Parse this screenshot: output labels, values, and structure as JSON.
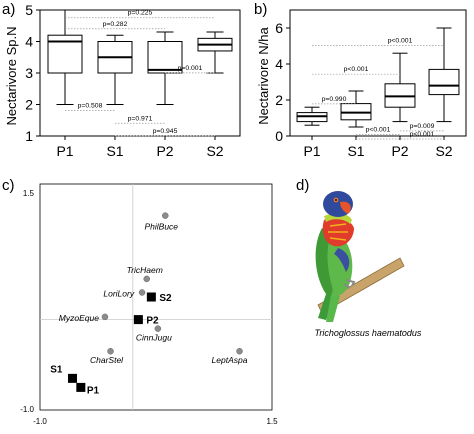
{
  "chart_data": [
    {
      "type": "box",
      "panel_label": "a)",
      "ylabel": "Nectarivore Sp.N",
      "ylim": [
        1,
        5
      ],
      "yticks": [
        1,
        2,
        3,
        4,
        5
      ],
      "categories": [
        "P1",
        "S1",
        "P2",
        "S2"
      ],
      "boxes": [
        {
          "whisker_low": 2.0,
          "q1": 3.0,
          "median": 4.0,
          "q3": 4.2,
          "whisker_high": 5.0
        },
        {
          "whisker_low": 2.0,
          "q1": 3.0,
          "median": 3.5,
          "q3": 4.0,
          "whisker_high": 4.2
        },
        {
          "whisker_low": 2.0,
          "q1": 3.0,
          "median": 3.1,
          "q3": 4.0,
          "whisker_high": 4.3
        },
        {
          "whisker_low": 3.0,
          "q1": 3.7,
          "median": 3.9,
          "q3": 4.1,
          "whisker_high": 4.3
        }
      ],
      "annotations": [
        {
          "text": "p=0.225",
          "x": 2.5,
          "y": 4.85,
          "from": 1,
          "to": 4
        },
        {
          "text": "p=0.282",
          "x": 2.0,
          "y": 4.5,
          "from": 1,
          "to": 3
        },
        {
          "text": "p=0.001",
          "x": 3.5,
          "y": 3.1,
          "from": 3,
          "to": 4
        },
        {
          "text": "p=0.508",
          "x": 1.5,
          "y": 1.9,
          "from": 1,
          "to": 2
        },
        {
          "text": "p=0.971",
          "x": 2.5,
          "y": 1.5,
          "from": 2,
          "to": 3
        },
        {
          "text": "p=0.945",
          "x": 3.0,
          "y": 1.1,
          "from": 2,
          "to": 4
        }
      ]
    },
    {
      "type": "box",
      "panel_label": "b)",
      "ylabel": "Nectarivore N/ha",
      "ylim": [
        0,
        7
      ],
      "yticks": [
        0,
        2,
        4,
        6
      ],
      "categories": [
        "P1",
        "S1",
        "P2",
        "S2"
      ],
      "boxes": [
        {
          "whisker_low": 0.6,
          "q1": 0.8,
          "median": 1.1,
          "q3": 1.3,
          "whisker_high": 1.6
        },
        {
          "whisker_low": 0.5,
          "q1": 0.9,
          "median": 1.3,
          "q3": 1.8,
          "whisker_high": 2.5
        },
        {
          "whisker_low": 0.8,
          "q1": 1.6,
          "median": 2.2,
          "q3": 2.9,
          "whisker_high": 4.6
        },
        {
          "whisker_low": 0.8,
          "q1": 2.3,
          "median": 2.8,
          "q3": 3.7,
          "whisker_high": 6.0
        }
      ],
      "annotations": [
        {
          "text": "p<0.001",
          "x": 3.0,
          "y": 5.2,
          "from": 1,
          "to": 4
        },
        {
          "text": "p<0.001",
          "x": 2.0,
          "y": 3.6,
          "from": 1,
          "to": 3
        },
        {
          "text": "p=0.990",
          "x": 1.5,
          "y": 1.95,
          "from": 1,
          "to": 2
        },
        {
          "text": "p<0.001",
          "x": 2.5,
          "y": 0.25,
          "from": 2,
          "to": 3
        },
        {
          "text": "p=0.009",
          "x": 3.5,
          "y": 0.45,
          "from": 3,
          "to": 4
        },
        {
          "text": "p<0.001",
          "x": 3.5,
          "y": 0.0,
          "from": 2,
          "to": 4
        }
      ]
    },
    {
      "type": "scatter",
      "panel_label": "c)",
      "xlim": [
        -1.0,
        1.5
      ],
      "ylim": [
        -1.0,
        1.5
      ],
      "xticks": [
        "-1.0",
        "1.5"
      ],
      "yticks": [
        "1.5",
        "-1.0"
      ],
      "species": [
        {
          "label": "PhilBuce",
          "x": 0.35,
          "y": 1.15
        },
        {
          "label": "TricHaem",
          "x": 0.15,
          "y": 0.45
        },
        {
          "label": "LoriLory",
          "x": 0.1,
          "y": 0.3
        },
        {
          "label": "MyzoEque",
          "x": -0.3,
          "y": 0.03
        },
        {
          "label": "CinnJugu",
          "x": 0.27,
          "y": -0.1
        },
        {
          "label": "CharStel",
          "x": -0.24,
          "y": -0.35
        },
        {
          "label": "LeptAspa",
          "x": 1.15,
          "y": -0.35
        }
      ],
      "sites": [
        {
          "label": "S2",
          "x": 0.2,
          "y": 0.25
        },
        {
          "label": "P2",
          "x": 0.06,
          "y": 0.0
        },
        {
          "label": "S1",
          "x": -0.65,
          "y": -0.65
        },
        {
          "label": "P1",
          "x": -0.56,
          "y": -0.75
        }
      ]
    }
  ],
  "panel_d": {
    "label": "d)",
    "caption": "Trichoglossus haematodus"
  }
}
